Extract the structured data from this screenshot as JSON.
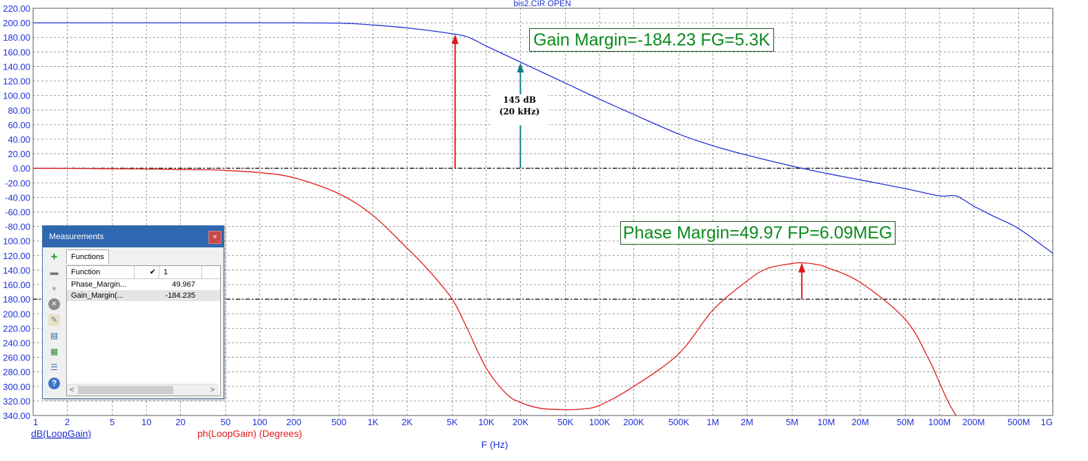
{
  "chart_data": {
    "type": "line",
    "title": "bis2.CIR OPEN",
    "xlabel": "F (Hz)",
    "x_scale": "log",
    "xlim": [
      1,
      1000000000
    ],
    "x_ticks": [
      {
        "v": 1,
        "label": "1"
      },
      {
        "v": 2,
        "label": "2"
      },
      {
        "v": 5,
        "label": "5"
      },
      {
        "v": 10,
        "label": "10"
      },
      {
        "v": 20,
        "label": "20"
      },
      {
        "v": 50,
        "label": "50"
      },
      {
        "v": 100,
        "label": "100"
      },
      {
        "v": 200,
        "label": "200"
      },
      {
        "v": 500,
        "label": "500"
      },
      {
        "v": 1000,
        "label": "1K"
      },
      {
        "v": 2000,
        "label": "2K"
      },
      {
        "v": 5000,
        "label": "5K"
      },
      {
        "v": 10000,
        "label": "10K"
      },
      {
        "v": 20000,
        "label": "20K"
      },
      {
        "v": 50000,
        "label": "50K"
      },
      {
        "v": 100000,
        "label": "100K"
      },
      {
        "v": 200000,
        "label": "200K"
      },
      {
        "v": 500000,
        "label": "500K"
      },
      {
        "v": 1000000,
        "label": "1M"
      },
      {
        "v": 2000000,
        "label": "2M"
      },
      {
        "v": 5000000,
        "label": "5M"
      },
      {
        "v": 10000000,
        "label": "10M"
      },
      {
        "v": 20000000,
        "label": "20M"
      },
      {
        "v": 50000000,
        "label": "50M"
      },
      {
        "v": 100000000,
        "label": "100M"
      },
      {
        "v": 200000000,
        "label": "200M"
      },
      {
        "v": 500000000,
        "label": "500M"
      },
      {
        "v": 1000000000,
        "label": "1G"
      }
    ],
    "ylim": [
      -340,
      220
    ],
    "y_ticks": [
      {
        "v": 220,
        "label": "220.00"
      },
      {
        "v": 200,
        "label": "200.00"
      },
      {
        "v": 180,
        "label": "180.00"
      },
      {
        "v": 160,
        "label": "160.00"
      },
      {
        "v": 140,
        "label": "140.00"
      },
      {
        "v": 120,
        "label": "120.00"
      },
      {
        "v": 100,
        "label": "100.00"
      },
      {
        "v": 80,
        "label": "80.00"
      },
      {
        "v": 60,
        "label": "60.00"
      },
      {
        "v": 40,
        "label": "40.00"
      },
      {
        "v": 20,
        "label": "20.00"
      },
      {
        "v": 0,
        "label": "0.00"
      },
      {
        "v": -20,
        "label": "-20.00"
      },
      {
        "v": -40,
        "label": "-40.00"
      },
      {
        "v": -60,
        "label": "-60.00"
      },
      {
        "v": -80,
        "label": "-80.00"
      },
      {
        "v": -100,
        "label": "100.00"
      },
      {
        "v": -120,
        "label": "120.00"
      },
      {
        "v": -140,
        "label": "140.00"
      },
      {
        "v": -160,
        "label": "160.00"
      },
      {
        "v": -180,
        "label": "180.00"
      },
      {
        "v": -200,
        "label": "200.00"
      },
      {
        "v": -220,
        "label": "220.00"
      },
      {
        "v": -240,
        "label": "240.00"
      },
      {
        "v": -260,
        "label": "260.00"
      },
      {
        "v": -280,
        "label": "280.00"
      },
      {
        "v": -300,
        "label": "300.00"
      },
      {
        "v": -320,
        "label": "320.00"
      },
      {
        "v": -340,
        "label": "340.00"
      }
    ],
    "grid": true,
    "series": [
      {
        "name": "dB(LoopGain)",
        "color": "#1f2fd6",
        "x": [
          1,
          10,
          100,
          500,
          1000,
          2000,
          5000,
          7000,
          10000,
          20000,
          50000,
          100000,
          200000,
          500000,
          1000000,
          2000000,
          5000000,
          10000000,
          20000000,
          50000000,
          100000000,
          140000000,
          200000000,
          300000000,
          500000000,
          1000000000
        ],
        "y": [
          200,
          200,
          200,
          199.5,
          197,
          193,
          185,
          180,
          168,
          146,
          117,
          95,
          74,
          47,
          31,
          18,
          3,
          -7,
          -16,
          -28,
          -38,
          -38,
          -52,
          -66,
          -83,
          -117
        ]
      },
      {
        "name": "ph(LoopGain) (Degrees)",
        "color": "#e01818",
        "x": [
          1,
          10,
          30,
          50,
          100,
          200,
          500,
          1000,
          2000,
          3000,
          5000,
          7000,
          10000,
          15000,
          20000,
          30000,
          50000,
          70000,
          100000,
          200000,
          500000,
          1000000,
          2000000,
          3000000,
          5000000,
          6090000,
          8000000,
          10000000,
          20000000,
          50000000,
          80000000,
          100000000,
          120000000,
          140000000
        ],
        "y": [
          0,
          -1,
          -2,
          -3,
          -6,
          -13,
          -35,
          -65,
          -110,
          -138,
          -180,
          -225,
          -275,
          -310,
          -322,
          -330,
          -332,
          -331,
          -326,
          -300,
          -255,
          -195,
          -155,
          -138,
          -131,
          -130,
          -132,
          -136,
          -157,
          -208,
          -262,
          -295,
          -322,
          -340
        ]
      }
    ],
    "reference_lines": [
      {
        "axis": "y",
        "value": 0
      },
      {
        "axis": "y",
        "value": -180
      }
    ],
    "arrows": [
      {
        "x": 5300,
        "from": 0,
        "to": 184.23,
        "color": "#e01818"
      },
      {
        "x": 20000,
        "from": 0,
        "to": 145,
        "color": "#0e7f7f"
      },
      {
        "x": 6090000,
        "from": -180,
        "to": -130,
        "color": "#e01818"
      }
    ],
    "annotations": {
      "gain_margin": "Gain Margin=-184.23 FG=5.3K",
      "phase_margin": "Phase Margin=49.97 FP=6.09MEG",
      "note_line1": "145 dB",
      "note_line2": "(20 kHz)"
    }
  },
  "colors": {
    "axis_text": "#1f2fd6",
    "phase": "#e01818",
    "grid": "#7d7d7d"
  },
  "measurements": {
    "title": "Measurements",
    "close_label": "×",
    "tab_label": "Functions",
    "col_function": "Function",
    "col_check": "✔",
    "col_index": "1",
    "rows": [
      {
        "name": "Phase_Margin...",
        "value": "49.967"
      },
      {
        "name": "Gain_Margin(...",
        "value": "-184.235"
      }
    ],
    "scroll_left": "<",
    "scroll_right": ">",
    "toolbar_icons": [
      "add-icon",
      "remove-icon",
      "disabled-icon",
      "delete-icon",
      "edit-icon",
      "list-icon",
      "export-icon",
      "report-icon",
      "help-icon"
    ]
  }
}
